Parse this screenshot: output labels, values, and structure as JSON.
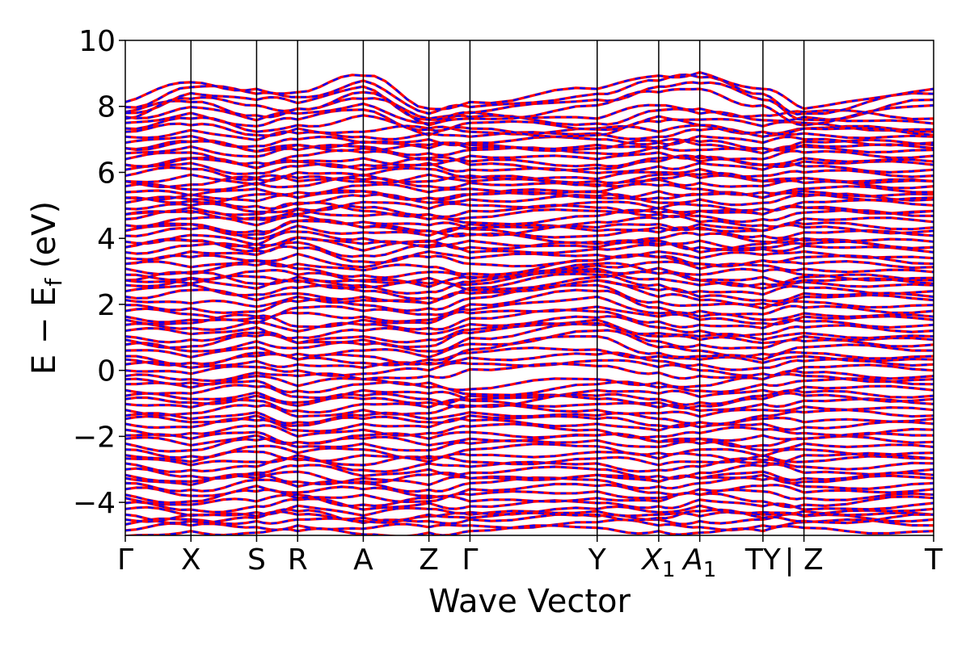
{
  "chart_data": {
    "type": "line",
    "title": "",
    "xlabel": "Wave Vector",
    "ylabel": "E − E",
    "ylabel_sub": "f",
    "ylabel_unit": " (eV)",
    "ylim": [
      -5,
      10
    ],
    "yticks": [
      10,
      8,
      6,
      4,
      2,
      0,
      -2,
      -4
    ],
    "ytick_labels": [
      "10",
      "8",
      "6",
      "4",
      "2",
      "0",
      "−2",
      "−4"
    ],
    "kpath_positions": [
      0,
      0.8,
      1.6,
      2.1,
      2.9,
      3.7,
      4.2,
      5.75,
      6.5,
      7.0,
      7.77,
      8.27,
      9.85
    ],
    "kpath_labels": [
      {
        "label": "Γ",
        "sub": ""
      },
      {
        "label": "X",
        "sub": ""
      },
      {
        "label": "S",
        "sub": ""
      },
      {
        "label": "R",
        "sub": ""
      },
      {
        "label": "A",
        "sub": ""
      },
      {
        "label": "Z",
        "sub": ""
      },
      {
        "label": "Γ",
        "sub": ""
      },
      {
        "label": "Y",
        "sub": ""
      },
      {
        "label": "X",
        "sub": "1"
      },
      {
        "label": "A",
        "sub": "1"
      },
      {
        "label": "TY",
        "sub": ""
      },
      {
        "label": "| Z",
        "sub": ""
      },
      {
        "label": "T",
        "sub": ""
      }
    ],
    "grid": false,
    "series": [
      {
        "color": "#ff0000",
        "style": "solid"
      },
      {
        "color": "#0000ff",
        "style": "dashed"
      }
    ],
    "bands_representative": [
      [
        -4.85,
        -4.7,
        -4.75,
        -4.7,
        -4.8,
        -4.75,
        -4.7,
        -4.6,
        -4.7,
        -4.75,
        -4.7,
        -4.6,
        -4.7
      ],
      [
        -4.2,
        -4.4,
        -4.3,
        -4.1,
        -4.4,
        -4.2,
        -4.3,
        -4.2,
        -4.3,
        -4.1,
        -4.3,
        -4.4,
        -4.2
      ],
      [
        -3.6,
        -3.8,
        -3.5,
        -3.7,
        -3.6,
        -3.8,
        -3.6,
        -3.5,
        -3.7,
        -3.6,
        -3.5,
        -3.7,
        -3.6
      ],
      [
        -3.0,
        -3.2,
        -3.1,
        -2.9,
        -3.2,
        -3.0,
        -3.1,
        -3.0,
        -3.2,
        -3.1,
        -2.9,
        -3.1,
        -3.0
      ],
      [
        -2.4,
        -2.6,
        -2.3,
        -2.5,
        -2.4,
        -2.6,
        -2.4,
        -2.3,
        -2.5,
        -2.4,
        -2.6,
        -2.4,
        -2.5
      ],
      [
        -1.8,
        -1.9,
        -1.7,
        -2.0,
        -1.8,
        -1.9,
        -1.7,
        -1.8,
        -2.0,
        -1.9,
        -1.8,
        -1.9,
        -1.8
      ],
      [
        -1.2,
        -1.3,
        -1.1,
        -1.4,
        -1.2,
        -1.3,
        -1.1,
        -1.2,
        -1.3,
        -1.4,
        -1.2,
        -1.1,
        -1.2
      ],
      [
        -0.6,
        -0.7,
        -0.5,
        -0.8,
        -0.6,
        -0.7,
        -0.9,
        -0.6,
        -0.7,
        -0.8,
        -0.6,
        -0.5,
        -0.6
      ],
      [
        0.0,
        -0.1,
        0.1,
        0.0,
        -0.1,
        0.0,
        0.2,
        0.3,
        0.1,
        0.0,
        -0.1,
        0.1,
        0.0
      ],
      [
        0.6,
        0.4,
        0.7,
        0.5,
        0.6,
        0.4,
        0.8,
        1.2,
        0.7,
        0.6,
        0.5,
        0.7,
        0.6
      ],
      [
        1.2,
        1.1,
        1.3,
        1.0,
        1.2,
        1.1,
        1.4,
        1.6,
        1.3,
        1.2,
        1.1,
        1.3,
        1.2
      ],
      [
        1.8,
        1.7,
        1.6,
        1.9,
        1.8,
        1.7,
        2.0,
        2.4,
        1.9,
        1.8,
        1.7,
        1.9,
        1.8
      ],
      [
        2.4,
        2.6,
        2.3,
        2.5,
        2.4,
        2.2,
        2.5,
        2.9,
        2.6,
        2.4,
        2.3,
        2.5,
        2.4
      ],
      [
        2.9,
        2.8,
        3.0,
        2.9,
        2.7,
        2.8,
        2.6,
        3.0,
        3.1,
        2.9,
        3.0,
        2.9,
        2.8
      ],
      [
        3.4,
        3.6,
        3.5,
        3.7,
        3.3,
        3.6,
        3.4,
        3.5,
        3.6,
        3.4,
        3.5,
        3.6,
        3.4
      ],
      [
        3.9,
        4.1,
        3.8,
        4.2,
        4.0,
        3.9,
        4.1,
        3.9,
        4.0,
        4.1,
        3.9,
        4.0,
        3.9
      ],
      [
        4.4,
        4.6,
        4.4,
        4.7,
        4.5,
        4.4,
        4.3,
        4.5,
        4.6,
        4.5,
        4.4,
        4.6,
        4.5
      ],
      [
        4.9,
        5.0,
        4.8,
        4.9,
        5.1,
        4.9,
        5.0,
        5.1,
        4.9,
        5.0,
        4.9,
        5.1,
        5.0
      ],
      [
        5.4,
        5.3,
        5.5,
        5.4,
        5.6,
        5.4,
        5.5,
        5.4,
        5.6,
        5.5,
        5.4,
        5.5,
        5.4
      ],
      [
        5.9,
        6.1,
        5.8,
        6.0,
        5.9,
        6.1,
        5.9,
        5.8,
        6.0,
        6.1,
        5.9,
        6.0,
        5.9
      ],
      [
        6.4,
        6.6,
        6.3,
        6.5,
        6.6,
        6.4,
        6.5,
        6.4,
        6.6,
        6.5,
        6.4,
        6.6,
        6.5
      ],
      [
        6.9,
        7.1,
        6.8,
        7.0,
        6.9,
        7.0,
        6.9,
        7.0,
        6.9,
        7.1,
        6.9,
        7.0,
        6.9
      ],
      [
        7.5,
        7.8,
        7.4,
        7.6,
        7.9,
        7.3,
        7.5,
        7.3,
        7.7,
        7.6,
        7.4,
        7.5,
        7.3
      ],
      [
        7.8,
        8.4,
        8.2,
        8.1,
        8.6,
        7.6,
        7.8,
        8.2,
        8.6,
        8.7,
        8.2,
        7.6,
        8.2
      ]
    ]
  }
}
